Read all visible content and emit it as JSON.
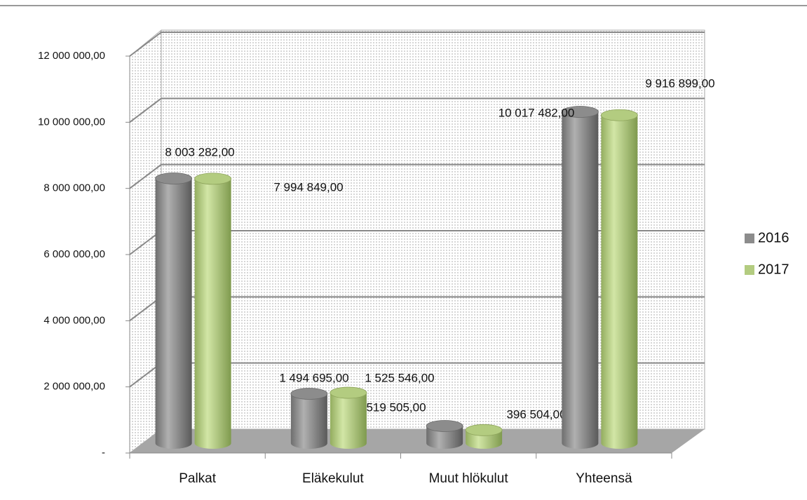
{
  "chart_data": {
    "type": "bar3d",
    "categories": [
      "Palkat",
      "Eläkekulut",
      "Muut hlökulut",
      "Yhteensä"
    ],
    "series": [
      {
        "name": "2016",
        "color": "#8c8c8c",
        "values": [
          8003282,
          1494695,
          519505,
          10017482
        ],
        "value_labels": [
          "8 003 282,00",
          "1 494 695,00",
          "519 505,00",
          "10 017 482,00"
        ]
      },
      {
        "name": "2017",
        "color": "#b3cc80",
        "values": [
          7994849,
          1525546,
          396504,
          9916899
        ],
        "value_labels": [
          "7 994 849,00",
          "1 525 546,00",
          "396 504,00",
          "9 916 899,00"
        ]
      }
    ],
    "ylim": [
      0,
      12000000
    ],
    "yticks": [
      {
        "value": 0,
        "label": "-"
      },
      {
        "value": 2000000,
        "label": "2 000 000,00"
      },
      {
        "value": 4000000,
        "label": "4 000 000,00"
      },
      {
        "value": 6000000,
        "label": "6 000 000,00"
      },
      {
        "value": 8000000,
        "label": "8 000 000,00"
      },
      {
        "value": 10000000,
        "label": "10 000 000,00"
      },
      {
        "value": 12000000,
        "label": "12 000 000,00"
      }
    ],
    "grid": true,
    "legend": "right"
  }
}
